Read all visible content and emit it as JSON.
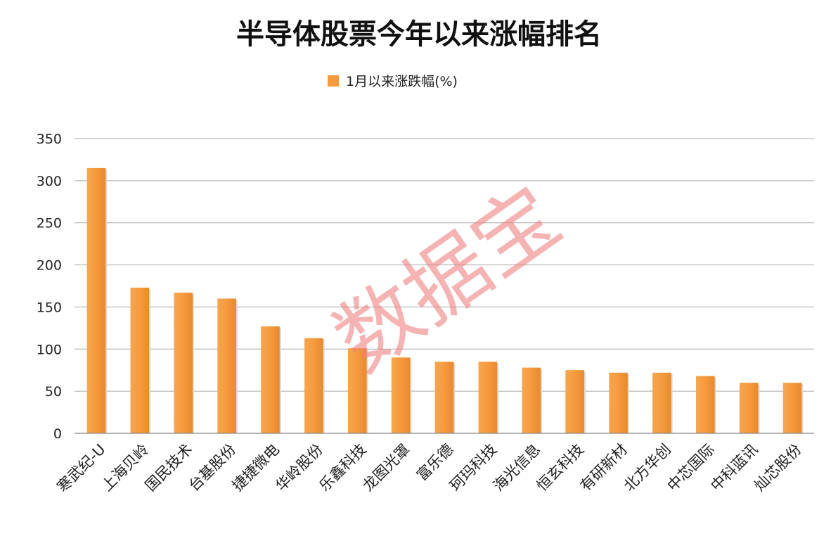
{
  "chart_data": {
    "type": "bar",
    "title": "半导体股票今年以来涨幅排名",
    "legend": {
      "position": "top",
      "entries": [
        "1月以来涨跌幅(%)"
      ]
    },
    "categories": [
      "寒武纪-U",
      "上海贝岭",
      "国民技术",
      "台基股份",
      "捷捷微电",
      "华岭股份",
      "乐鑫科技",
      "龙图光罩",
      "富乐德",
      "珂玛科技",
      "海光信息",
      "恒玄科技",
      "有研新材",
      "北方华创",
      "中芯国际",
      "中科蓝讯",
      "灿芯股份"
    ],
    "series": [
      {
        "name": "1月以来涨跌幅(%)",
        "color": "#f59a3e",
        "values": [
          315,
          173,
          167,
          160,
          127,
          113,
          101,
          90,
          85,
          85,
          78,
          75,
          72,
          72,
          68,
          60,
          60
        ]
      }
    ],
    "y_ticks": [
      "0",
      "50",
      "100",
      "150",
      "200",
      "250",
      "300",
      "350"
    ],
    "ylim": [
      0,
      350
    ],
    "grid": true,
    "xlabel": "",
    "ylabel": ""
  },
  "watermark": {
    "text": "数据宝",
    "color": "#f08080"
  }
}
